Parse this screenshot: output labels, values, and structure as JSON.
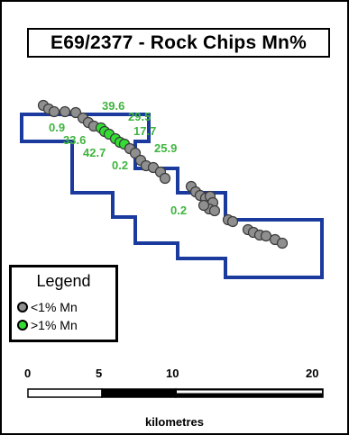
{
  "map": {
    "title": "E69/2377 - Rock Chips Mn%",
    "colors": {
      "tenement": "#1a3a9e",
      "low": "#8f8f8f",
      "high": "#33dd33",
      "label": "#3fb43f"
    },
    "labels": [
      {
        "text": "39.6"
      },
      {
        "text": "29.5"
      },
      {
        "text": "0.9"
      },
      {
        "text": "17.7"
      },
      {
        "text": "33.6"
      },
      {
        "text": "25.9"
      },
      {
        "text": "42.7"
      },
      {
        "text": "0.2"
      },
      {
        "text": "0.2"
      }
    ]
  },
  "legend": {
    "title": "Legend",
    "items": [
      {
        "label": "<1% Mn",
        "color": "#8f8f8f",
        "icon": "grey-circle-icon"
      },
      {
        "label": ">1% Mn",
        "color": "#33dd33",
        "icon": "green-circle-icon"
      }
    ]
  },
  "scale": {
    "ticks": [
      "0",
      "5",
      "10",
      "20"
    ],
    "unit": "kilometres"
  }
}
